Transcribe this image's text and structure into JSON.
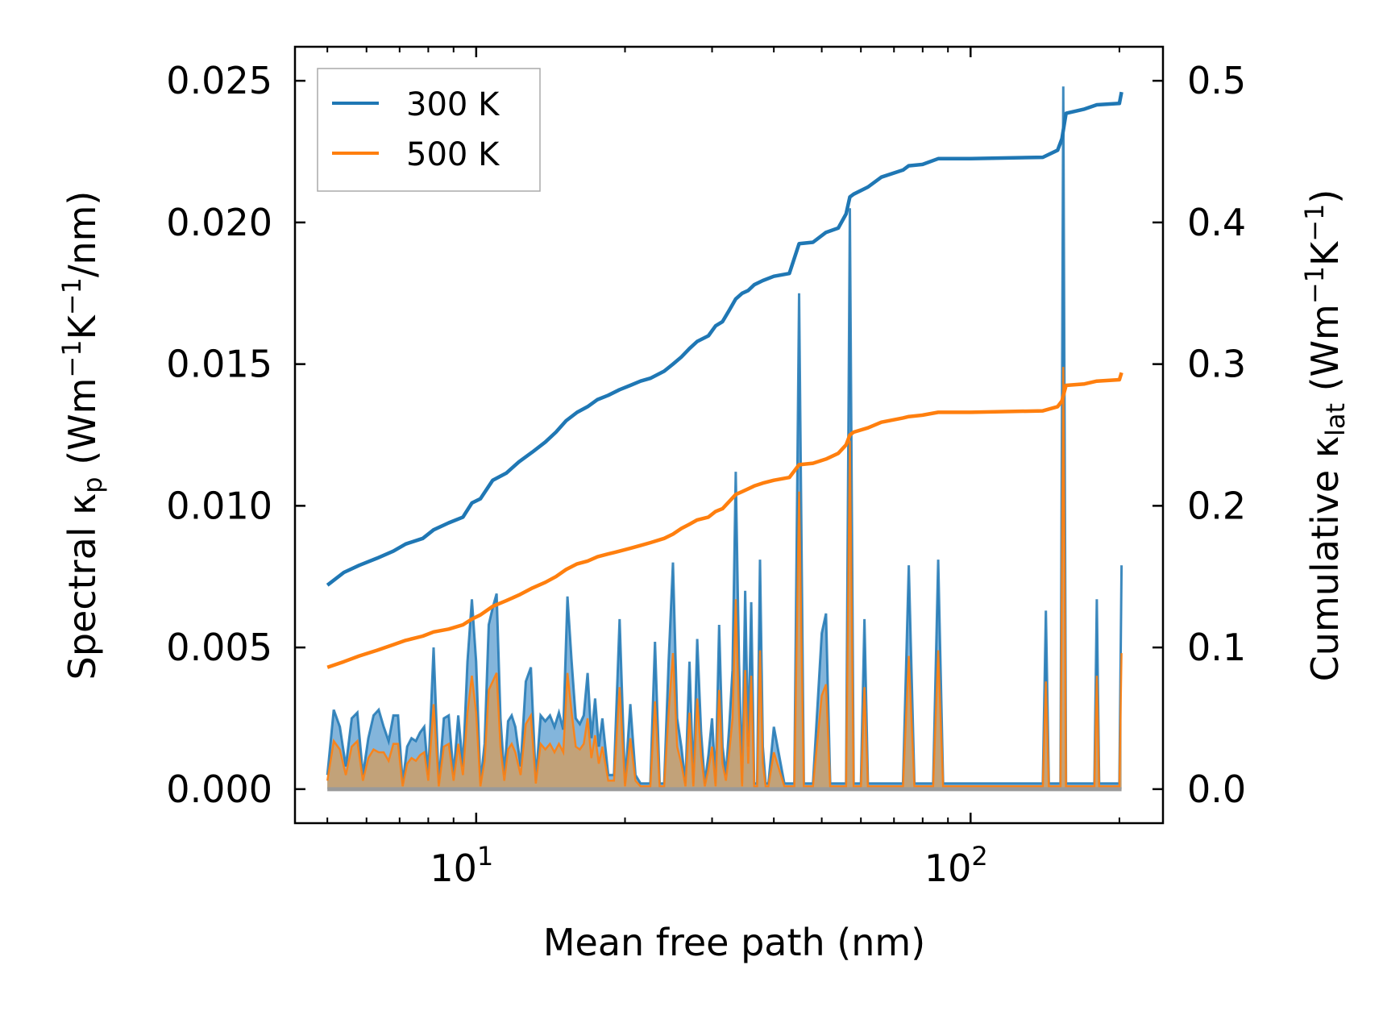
{
  "chart_data": {
    "type": "line",
    "xscale": "log",
    "xlabel": "Mean free path (nm)",
    "ylabel_left": {
      "pre": "Spectral κ",
      "sub": "p",
      "post": " (Wm",
      "sup1": "−1",
      "mid": "K",
      "sup2": "−1",
      "end": "/nm)"
    },
    "ylabel_right": {
      "pre": "Cumulative κ",
      "sub": "lat",
      "post": " (Wm",
      "sup1": "−1",
      "mid": "K",
      "sup2": "−1",
      "end": ")"
    },
    "xlim": [
      4.3,
      245
    ],
    "ylim_left": [
      -0.0012,
      0.0262
    ],
    "ylim_right": [
      -0.024,
      0.524
    ],
    "xticks_major": [
      {
        "value": 10,
        "base": "10",
        "exp": "1"
      },
      {
        "value": 100,
        "base": "10",
        "exp": "2"
      }
    ],
    "yticks_left": [
      "0.000",
      "0.005",
      "0.010",
      "0.015",
      "0.020",
      "0.025"
    ],
    "yticks_left_values": [
      0,
      0.005,
      0.01,
      0.015,
      0.02,
      0.025
    ],
    "yticks_right": [
      "0.0",
      "0.1",
      "0.2",
      "0.3",
      "0.4",
      "0.5"
    ],
    "yticks_right_values": [
      0,
      0.1,
      0.2,
      0.3,
      0.4,
      0.5
    ],
    "legend": {
      "position": "top-left",
      "entries": [
        "300 K",
        "500 K"
      ]
    },
    "colors": {
      "300K": "#1f77b4",
      "500K": "#ff7f0e",
      "fill300": "#5a9ccf",
      "fill500": "#c9a06e"
    },
    "spectral_300K": [
      [
        5.0,
        0.0005
      ],
      [
        5.15,
        0.0028
      ],
      [
        5.3,
        0.0022
      ],
      [
        5.45,
        0.0008
      ],
      [
        5.6,
        0.0025
      ],
      [
        5.75,
        0.0027
      ],
      [
        5.9,
        0.0005
      ],
      [
        6.05,
        0.0018
      ],
      [
        6.2,
        0.0026
      ],
      [
        6.35,
        0.0028
      ],
      [
        6.5,
        0.0022
      ],
      [
        6.65,
        0.0017
      ],
      [
        6.8,
        0.0026
      ],
      [
        6.95,
        0.0026
      ],
      [
        7.1,
        0.0002
      ],
      [
        7.25,
        0.0015
      ],
      [
        7.4,
        0.0018
      ],
      [
        7.55,
        0.0017
      ],
      [
        7.7,
        0.002
      ],
      [
        7.85,
        0.0022
      ],
      [
        8.0,
        0.0005
      ],
      [
        8.2,
        0.005
      ],
      [
        8.4,
        0.0002
      ],
      [
        8.6,
        0.0025
      ],
      [
        8.8,
        0.0026
      ],
      [
        9.0,
        0.0005
      ],
      [
        9.2,
        0.0026
      ],
      [
        9.4,
        0.0008
      ],
      [
        9.6,
        0.0045
      ],
      [
        9.8,
        0.0067
      ],
      [
        10.0,
        0.0045
      ],
      [
        10.2,
        0.0002
      ],
      [
        10.4,
        0.0016
      ],
      [
        10.6,
        0.0058
      ],
      [
        10.8,
        0.0064
      ],
      [
        11.0,
        0.0069
      ],
      [
        11.2,
        0.0025
      ],
      [
        11.4,
        0.0005
      ],
      [
        11.6,
        0.0024
      ],
      [
        11.8,
        0.0026
      ],
      [
        12.0,
        0.0022
      ],
      [
        12.3,
        0.0008
      ],
      [
        12.6,
        0.0038
      ],
      [
        12.9,
        0.0043
      ],
      [
        13.2,
        0.0003
      ],
      [
        13.5,
        0.0026
      ],
      [
        13.8,
        0.0024
      ],
      [
        14.1,
        0.0026
      ],
      [
        14.4,
        0.0022
      ],
      [
        14.7,
        0.0027
      ],
      [
        15.0,
        0.0021
      ],
      [
        15.3,
        0.0068
      ],
      [
        15.6,
        0.0045
      ],
      [
        15.9,
        0.0025
      ],
      [
        16.2,
        0.0023
      ],
      [
        16.5,
        0.0026
      ],
      [
        16.8,
        0.0041
      ],
      [
        17.1,
        0.0018
      ],
      [
        17.4,
        0.0032
      ],
      [
        17.7,
        0.0015
      ],
      [
        18.0,
        0.0025
      ],
      [
        18.5,
        0.0005
      ],
      [
        19.0,
        0.0005
      ],
      [
        19.5,
        0.006
      ],
      [
        20.0,
        0.0002
      ],
      [
        20.5,
        0.003
      ],
      [
        21.0,
        0.0005
      ],
      [
        21.5,
        0.0002
      ],
      [
        22.0,
        0.0002
      ],
      [
        22.5,
        0.0002
      ],
      [
        23.0,
        0.0052
      ],
      [
        23.5,
        0.0002
      ],
      [
        24.0,
        0.0002
      ],
      [
        24.5,
        0.0045
      ],
      [
        25.0,
        0.008
      ],
      [
        25.5,
        0.0025
      ],
      [
        26.0,
        0.0015
      ],
      [
        26.5,
        0.0002
      ],
      [
        27.0,
        0.0045
      ],
      [
        27.5,
        0.0002
      ],
      [
        28.0,
        0.0053
      ],
      [
        28.5,
        0.002
      ],
      [
        29.0,
        0.0002
      ],
      [
        29.5,
        0.0012
      ],
      [
        30.0,
        0.0025
      ],
      [
        30.5,
        0.0002
      ],
      [
        31.0,
        0.0058
      ],
      [
        31.5,
        0.0015
      ],
      [
        32.0,
        0.0005
      ],
      [
        32.5,
        0.0022
      ],
      [
        33.0,
        0.0042
      ],
      [
        33.5,
        0.0112
      ],
      [
        34.0,
        0.0045
      ],
      [
        34.5,
        0.0002
      ],
      [
        35.0,
        0.007
      ],
      [
        35.5,
        0.0015
      ],
      [
        36.0,
        0.0066
      ],
      [
        36.5,
        0.0002
      ],
      [
        37.0,
        0.0002
      ],
      [
        37.5,
        0.0081
      ],
      [
        38.0,
        0.0015
      ],
      [
        38.5,
        0.0002
      ],
      [
        39.0,
        0.0002
      ],
      [
        40.0,
        0.0022
      ],
      [
        41.0,
        0.0012
      ],
      [
        42.0,
        0.0002
      ],
      [
        44.0,
        0.0002
      ],
      [
        45.0,
        0.0175
      ],
      [
        46.0,
        0.0002
      ],
      [
        48.0,
        0.0002
      ],
      [
        50.0,
        0.0055
      ],
      [
        51.0,
        0.0062
      ],
      [
        52.0,
        0.0002
      ],
      [
        54.0,
        0.0002
      ],
      [
        56.0,
        0.0002
      ],
      [
        57.0,
        0.0205
      ],
      [
        58.0,
        0.0002
      ],
      [
        60.0,
        0.0002
      ],
      [
        61.0,
        0.006
      ],
      [
        62.0,
        0.0002
      ],
      [
        73.0,
        0.0002
      ],
      [
        75.0,
        0.0079
      ],
      [
        77.0,
        0.0002
      ],
      [
        84.0,
        0.0002
      ],
      [
        86.0,
        0.0081
      ],
      [
        88.0,
        0.0002
      ],
      [
        140.0,
        0.0002
      ],
      [
        142.0,
        0.0063
      ],
      [
        144.0,
        0.0002
      ],
      [
        152.0,
        0.0002
      ],
      [
        154.0,
        0.0248
      ],
      [
        156.0,
        0.0002
      ],
      [
        178.0,
        0.0002
      ],
      [
        180.0,
        0.0067
      ],
      [
        182.0,
        0.0002
      ],
      [
        200.0,
        0.0002
      ],
      [
        202.0,
        0.0079
      ]
    ],
    "spectral_500K": [
      [
        5.0,
        0.0003
      ],
      [
        5.15,
        0.0017
      ],
      [
        5.3,
        0.0014
      ],
      [
        5.45,
        0.0005
      ],
      [
        5.6,
        0.0015
      ],
      [
        5.75,
        0.0017
      ],
      [
        5.9,
        0.0003
      ],
      [
        6.05,
        0.0011
      ],
      [
        6.2,
        0.0014
      ],
      [
        6.35,
        0.0013
      ],
      [
        6.5,
        0.0013
      ],
      [
        6.65,
        0.001
      ],
      [
        6.8,
        0.0016
      ],
      [
        6.95,
        0.0016
      ],
      [
        7.1,
        0.0001
      ],
      [
        7.25,
        0.0009
      ],
      [
        7.4,
        0.0011
      ],
      [
        7.55,
        0.001
      ],
      [
        7.7,
        0.0012
      ],
      [
        7.85,
        0.0013
      ],
      [
        8.0,
        0.0003
      ],
      [
        8.2,
        0.003
      ],
      [
        8.4,
        0.0001
      ],
      [
        8.6,
        0.0015
      ],
      [
        8.8,
        0.0016
      ],
      [
        9.0,
        0.0003
      ],
      [
        9.2,
        0.0016
      ],
      [
        9.4,
        0.0005
      ],
      [
        9.6,
        0.0027
      ],
      [
        9.8,
        0.004
      ],
      [
        10.0,
        0.0027
      ],
      [
        10.2,
        0.0001
      ],
      [
        10.4,
        0.001
      ],
      [
        10.6,
        0.0035
      ],
      [
        10.8,
        0.0038
      ],
      [
        11.0,
        0.0041
      ],
      [
        11.2,
        0.0015
      ],
      [
        11.4,
        0.0003
      ],
      [
        11.6,
        0.0014
      ],
      [
        11.8,
        0.0016
      ],
      [
        12.0,
        0.0013
      ],
      [
        12.3,
        0.0005
      ],
      [
        12.6,
        0.0023
      ],
      [
        12.9,
        0.0026
      ],
      [
        13.2,
        0.0002
      ],
      [
        13.5,
        0.0016
      ],
      [
        13.8,
        0.0014
      ],
      [
        14.1,
        0.0016
      ],
      [
        14.4,
        0.0013
      ],
      [
        14.7,
        0.0016
      ],
      [
        15.0,
        0.0013
      ],
      [
        15.3,
        0.0041
      ],
      [
        15.6,
        0.0027
      ],
      [
        15.9,
        0.0015
      ],
      [
        16.2,
        0.0014
      ],
      [
        16.5,
        0.0016
      ],
      [
        16.8,
        0.0025
      ],
      [
        17.1,
        0.0011
      ],
      [
        17.4,
        0.0019
      ],
      [
        17.7,
        0.0009
      ],
      [
        18.0,
        0.0015
      ],
      [
        18.5,
        0.0003
      ],
      [
        19.0,
        0.0003
      ],
      [
        19.5,
        0.0036
      ],
      [
        20.0,
        0.0001
      ],
      [
        20.5,
        0.0018
      ],
      [
        21.0,
        0.0003
      ],
      [
        21.5,
        0.0001
      ],
      [
        22.0,
        0.0001
      ],
      [
        22.5,
        0.0001
      ],
      [
        23.0,
        0.0031
      ],
      [
        23.5,
        0.0001
      ],
      [
        24.0,
        0.0001
      ],
      [
        24.5,
        0.0027
      ],
      [
        25.0,
        0.0048
      ],
      [
        25.5,
        0.0015
      ],
      [
        26.0,
        0.0009
      ],
      [
        26.5,
        0.0001
      ],
      [
        27.0,
        0.0027
      ],
      [
        27.5,
        0.0001
      ],
      [
        28.0,
        0.0032
      ],
      [
        28.5,
        0.0012
      ],
      [
        29.0,
        0.0001
      ],
      [
        29.5,
        0.0007
      ],
      [
        30.0,
        0.0015
      ],
      [
        30.5,
        0.0001
      ],
      [
        31.0,
        0.0035
      ],
      [
        31.5,
        0.0009
      ],
      [
        32.0,
        0.0003
      ],
      [
        32.5,
        0.0013
      ],
      [
        33.0,
        0.0025
      ],
      [
        33.5,
        0.0067
      ],
      [
        34.0,
        0.0027
      ],
      [
        34.5,
        0.0001
      ],
      [
        35.0,
        0.0042
      ],
      [
        35.5,
        0.0009
      ],
      [
        36.0,
        0.004
      ],
      [
        36.5,
        0.0001
      ],
      [
        37.0,
        0.0001
      ],
      [
        37.5,
        0.0049
      ],
      [
        38.0,
        0.0009
      ],
      [
        38.5,
        0.0001
      ],
      [
        39.0,
        0.0001
      ],
      [
        40.0,
        0.0013
      ],
      [
        41.0,
        0.0007
      ],
      [
        42.0,
        0.0001
      ],
      [
        44.0,
        0.0001
      ],
      [
        45.0,
        0.0105
      ],
      [
        46.0,
        0.0001
      ],
      [
        48.0,
        0.0001
      ],
      [
        50.0,
        0.0033
      ],
      [
        51.0,
        0.0037
      ],
      [
        52.0,
        0.0001
      ],
      [
        54.0,
        0.0001
      ],
      [
        56.0,
        0.0001
      ],
      [
        57.0,
        0.0123
      ],
      [
        58.0,
        0.0001
      ],
      [
        60.0,
        0.0001
      ],
      [
        61.0,
        0.0036
      ],
      [
        62.0,
        0.0001
      ],
      [
        73.0,
        0.0001
      ],
      [
        75.0,
        0.0047
      ],
      [
        77.0,
        0.0001
      ],
      [
        84.0,
        0.0001
      ],
      [
        86.0,
        0.0049
      ],
      [
        88.0,
        0.0001
      ],
      [
        140.0,
        0.0001
      ],
      [
        142.0,
        0.0038
      ],
      [
        144.0,
        0.0001
      ],
      [
        152.0,
        0.0001
      ],
      [
        154.0,
        0.0149
      ],
      [
        156.0,
        0.0001
      ],
      [
        178.0,
        0.0001
      ],
      [
        180.0,
        0.004
      ],
      [
        182.0,
        0.0001
      ],
      [
        200.0,
        0.0001
      ],
      [
        202.0,
        0.0048
      ]
    ],
    "cumulative_300K": [
      [
        5.0,
        0.144
      ],
      [
        5.4,
        0.153
      ],
      [
        5.8,
        0.158
      ],
      [
        6.3,
        0.163
      ],
      [
        6.8,
        0.168
      ],
      [
        7.2,
        0.173
      ],
      [
        7.8,
        0.177
      ],
      [
        8.2,
        0.183
      ],
      [
        8.8,
        0.188
      ],
      [
        9.4,
        0.192
      ],
      [
        9.8,
        0.202
      ],
      [
        10.2,
        0.205
      ],
      [
        10.8,
        0.218
      ],
      [
        11.5,
        0.223
      ],
      [
        12.2,
        0.231
      ],
      [
        13.0,
        0.238
      ],
      [
        13.8,
        0.245
      ],
      [
        14.5,
        0.252
      ],
      [
        15.2,
        0.26
      ],
      [
        16.0,
        0.266
      ],
      [
        16.8,
        0.27
      ],
      [
        17.6,
        0.275
      ],
      [
        18.5,
        0.278
      ],
      [
        19.5,
        0.282
      ],
      [
        20.5,
        0.285
      ],
      [
        21.5,
        0.288
      ],
      [
        22.5,
        0.29
      ],
      [
        24.0,
        0.295
      ],
      [
        25.0,
        0.3
      ],
      [
        26.0,
        0.305
      ],
      [
        27.0,
        0.311
      ],
      [
        28.0,
        0.316
      ],
      [
        29.5,
        0.32
      ],
      [
        30.5,
        0.327
      ],
      [
        31.5,
        0.33
      ],
      [
        32.5,
        0.338
      ],
      [
        33.5,
        0.346
      ],
      [
        34.5,
        0.35
      ],
      [
        35.5,
        0.352
      ],
      [
        36.5,
        0.356
      ],
      [
        38.0,
        0.359
      ],
      [
        40.0,
        0.362
      ],
      [
        43.0,
        0.364
      ],
      [
        45.0,
        0.385
      ],
      [
        48.0,
        0.386
      ],
      [
        51.0,
        0.393
      ],
      [
        54.0,
        0.396
      ],
      [
        56.0,
        0.406
      ],
      [
        57.0,
        0.418
      ],
      [
        58.0,
        0.42
      ],
      [
        62.0,
        0.425
      ],
      [
        66.0,
        0.432
      ],
      [
        73.0,
        0.437
      ],
      [
        75.0,
        0.44
      ],
      [
        80.0,
        0.441
      ],
      [
        86.0,
        0.445
      ],
      [
        100.0,
        0.445
      ],
      [
        140.0,
        0.446
      ],
      [
        150.0,
        0.451
      ],
      [
        153.0,
        0.459
      ],
      [
        156.0,
        0.477
      ],
      [
        170.0,
        0.48
      ],
      [
        180.0,
        0.483
      ],
      [
        200.0,
        0.484
      ],
      [
        202.0,
        0.492
      ]
    ],
    "cumulative_500K": [
      [
        5.0,
        0.086
      ],
      [
        5.4,
        0.09
      ],
      [
        5.8,
        0.094
      ],
      [
        6.3,
        0.098
      ],
      [
        6.8,
        0.102
      ],
      [
        7.2,
        0.105
      ],
      [
        7.8,
        0.108
      ],
      [
        8.2,
        0.111
      ],
      [
        8.8,
        0.113
      ],
      [
        9.4,
        0.116
      ],
      [
        9.8,
        0.12
      ],
      [
        10.2,
        0.123
      ],
      [
        10.8,
        0.129
      ],
      [
        11.5,
        0.133
      ],
      [
        12.2,
        0.137
      ],
      [
        13.0,
        0.142
      ],
      [
        13.8,
        0.146
      ],
      [
        14.5,
        0.15
      ],
      [
        15.2,
        0.155
      ],
      [
        16.0,
        0.159
      ],
      [
        16.8,
        0.161
      ],
      [
        17.6,
        0.164
      ],
      [
        18.5,
        0.166
      ],
      [
        19.5,
        0.168
      ],
      [
        20.5,
        0.17
      ],
      [
        21.5,
        0.172
      ],
      [
        22.5,
        0.174
      ],
      [
        24.0,
        0.177
      ],
      [
        25.0,
        0.18
      ],
      [
        26.0,
        0.184
      ],
      [
        27.0,
        0.187
      ],
      [
        28.0,
        0.19
      ],
      [
        29.5,
        0.192
      ],
      [
        30.5,
        0.196
      ],
      [
        31.5,
        0.198
      ],
      [
        32.5,
        0.203
      ],
      [
        33.5,
        0.208
      ],
      [
        34.5,
        0.21
      ],
      [
        35.5,
        0.212
      ],
      [
        36.5,
        0.214
      ],
      [
        38.0,
        0.216
      ],
      [
        40.0,
        0.218
      ],
      [
        43.0,
        0.22
      ],
      [
        45.0,
        0.229
      ],
      [
        48.0,
        0.23
      ],
      [
        51.0,
        0.233
      ],
      [
        54.0,
        0.237
      ],
      [
        56.0,
        0.243
      ],
      [
        57.0,
        0.25
      ],
      [
        58.0,
        0.252
      ],
      [
        62.0,
        0.255
      ],
      [
        66.0,
        0.259
      ],
      [
        73.0,
        0.262
      ],
      [
        75.0,
        0.263
      ],
      [
        80.0,
        0.264
      ],
      [
        86.0,
        0.266
      ],
      [
        100.0,
        0.266
      ],
      [
        140.0,
        0.267
      ],
      [
        150.0,
        0.27
      ],
      [
        153.0,
        0.274
      ],
      [
        156.0,
        0.285
      ],
      [
        170.0,
        0.286
      ],
      [
        180.0,
        0.288
      ],
      [
        200.0,
        0.289
      ],
      [
        202.0,
        0.294
      ]
    ]
  }
}
